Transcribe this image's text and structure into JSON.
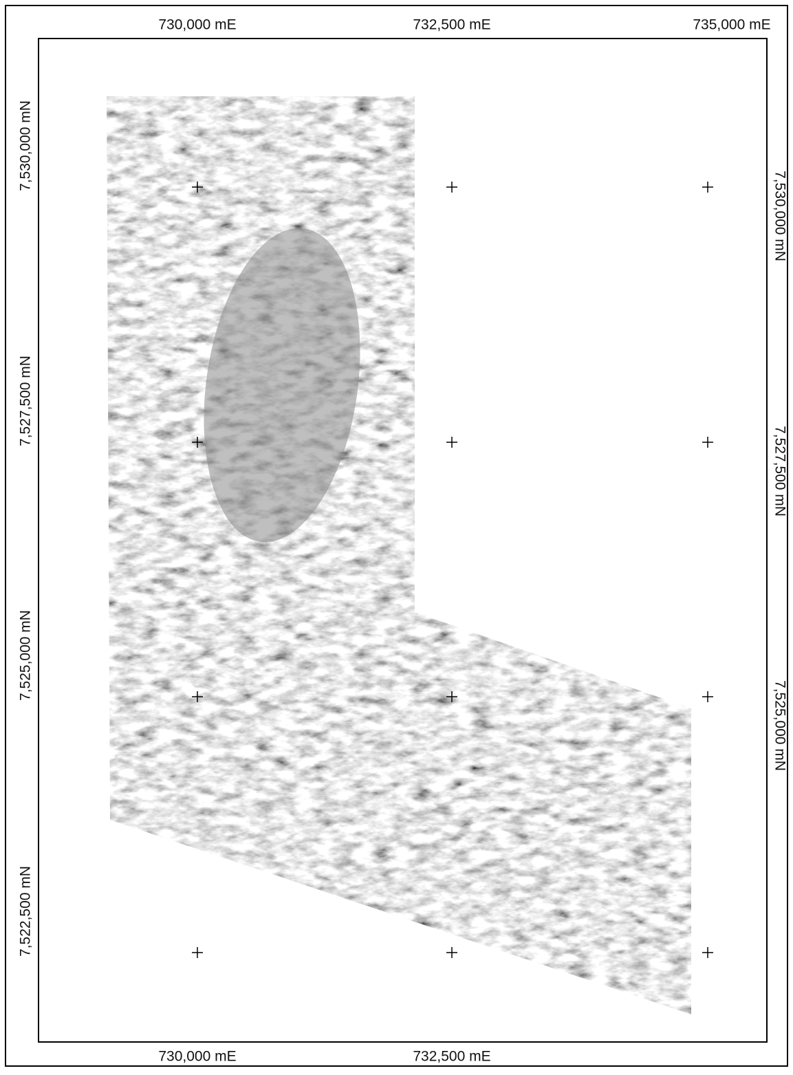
{
  "top_labels": [
    "730,000 mE",
    "732,500 mE",
    "735,000 mE"
  ],
  "bottom_labels": [
    "730,000 mE",
    "732,500 mE"
  ],
  "left_labels": [
    "7,530,000 mN",
    "7,527,500 mN",
    "7,525,000 mN",
    "7,522,500 mN"
  ],
  "right_labels": [
    "7,530,000 mN",
    "7,527,500 mN",
    "7,525,000 mN"
  ]
}
